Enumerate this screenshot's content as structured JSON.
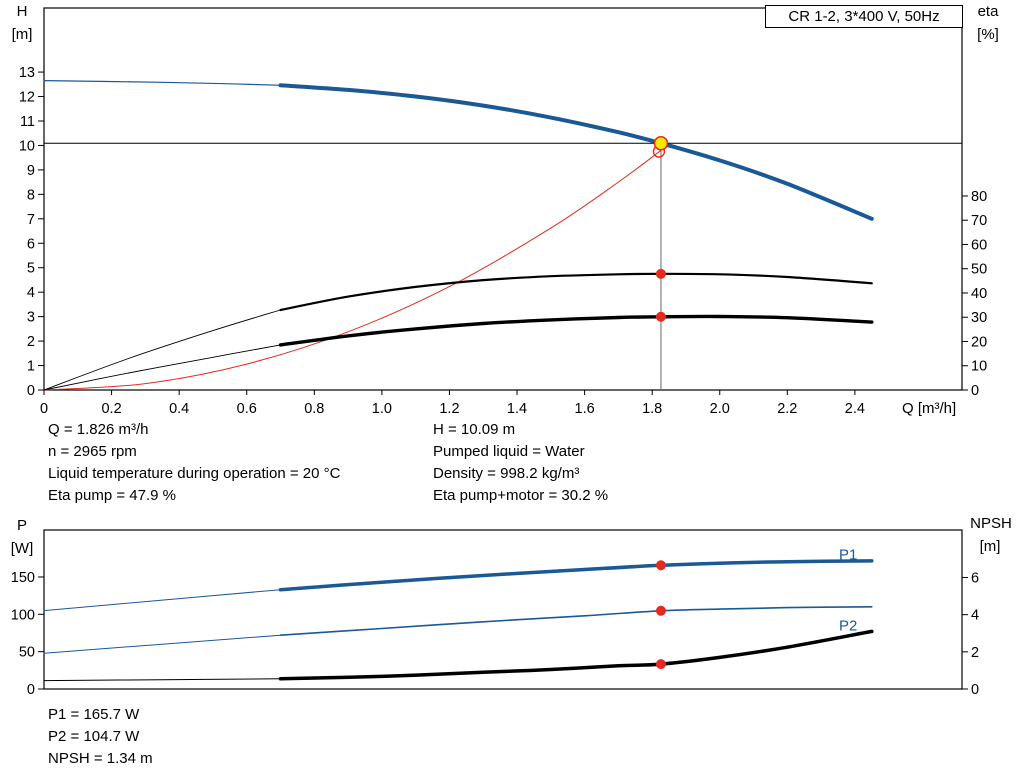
{
  "title_box": {
    "border_color": "#000000"
  },
  "colors": {
    "pump_blue": "#1a5896",
    "red": "#e42b1e",
    "duty_yellow": "#ffe800",
    "black": "#000000",
    "crosshair_gray": "#666666"
  },
  "chart_data": [
    {
      "type": "line",
      "title": "CR 1-2, 3*400 V, 50Hz",
      "xlabel": "Q [m³/h]",
      "ylabel_left": "H",
      "ylabel_left_unit": "[m]",
      "ylabel_right": "eta",
      "ylabel_right_unit": "[%]",
      "show_x_tick_labels": true,
      "x_ticks": [
        [
          0,
          "0"
        ],
        [
          0.2,
          "0.2"
        ],
        [
          0.4,
          "0.4"
        ],
        [
          0.6,
          "0.6"
        ],
        [
          0.8,
          "0.8"
        ],
        [
          1.0,
          "1.0"
        ],
        [
          1.2,
          "1.2"
        ],
        [
          1.4,
          "1.4"
        ],
        [
          1.6,
          "1.6"
        ],
        [
          1.8,
          "1.8"
        ],
        [
          2.0,
          "2.0"
        ],
        [
          2.2,
          "2.2"
        ],
        [
          2.4,
          "2.4"
        ]
      ],
      "y_ticks_left": [
        [
          0,
          "0"
        ],
        [
          1,
          "1"
        ],
        [
          2,
          "2"
        ],
        [
          3,
          "3"
        ],
        [
          4,
          "4"
        ],
        [
          5,
          "5"
        ],
        [
          6,
          "6"
        ],
        [
          7,
          "7"
        ],
        [
          8,
          "8"
        ],
        [
          9,
          "9"
        ],
        [
          10,
          "10"
        ],
        [
          11,
          "11"
        ],
        [
          12,
          "12"
        ],
        [
          13,
          "13"
        ]
      ],
      "y_ticks_right": [
        [
          0,
          "0"
        ],
        [
          10,
          "10"
        ],
        [
          20,
          "20"
        ],
        [
          30,
          "30"
        ],
        [
          40,
          "40"
        ],
        [
          50,
          "50"
        ],
        [
          60,
          "60"
        ],
        [
          70,
          "70"
        ],
        [
          80,
          "80"
        ]
      ],
      "xlim": [
        0,
        2.717
      ],
      "ylim_left": [
        0,
        15.62
      ],
      "ylim_right": [
        0,
        157.5
      ],
      "grid": false,
      "series": [
        {
          "name": "pump-curve-thin",
          "axis": "left",
          "color": "#1a5896",
          "width": 1.2,
          "points": [
            [
              0,
              12.65
            ],
            [
              0.35,
              12.58
            ],
            [
              0.55,
              12.52
            ],
            [
              0.7,
              12.46
            ]
          ]
        },
        {
          "name": "pump-curve",
          "axis": "left",
          "color": "#1a5896",
          "width": 4,
          "points": [
            [
              0.7,
              12.46
            ],
            [
              0.9,
              12.27
            ],
            [
              1.1,
              12.0
            ],
            [
              1.3,
              11.63
            ],
            [
              1.5,
              11.14
            ],
            [
              1.7,
              10.54
            ],
            [
              1.826,
              10.09
            ],
            [
              2.0,
              9.39
            ],
            [
              2.2,
              8.43
            ],
            [
              2.45,
              7.0
            ]
          ]
        },
        {
          "name": "system-curve",
          "axis": "left",
          "color": "#e42b1e",
          "width": 1,
          "points": [
            [
              0,
              0
            ],
            [
              0.3,
              0.26
            ],
            [
              0.6,
              1.06
            ],
            [
              0.9,
              2.38
            ],
            [
              1.2,
              4.23
            ],
            [
              1.5,
              6.62
            ],
            [
              1.7,
              8.5
            ],
            [
              1.826,
              9.8
            ]
          ]
        },
        {
          "name": "eta-pump-curve-thin",
          "axis": "right",
          "color": "#000000",
          "width": 0.9,
          "points": [
            [
              0,
              0
            ],
            [
              0.25,
              13
            ],
            [
              0.5,
              24.5
            ],
            [
              0.7,
              33
            ]
          ]
        },
        {
          "name": "eta-pump-curve",
          "axis": "right",
          "color": "#000000",
          "width": 2.2,
          "points": [
            [
              0.7,
              33
            ],
            [
              0.9,
              38.5
            ],
            [
              1.1,
              42.5
            ],
            [
              1.3,
              45.3
            ],
            [
              1.5,
              46.9
            ],
            [
              1.7,
              47.7
            ],
            [
              1.826,
              47.9
            ],
            [
              2.0,
              47.7
            ],
            [
              2.2,
              46.6
            ],
            [
              2.45,
              44.0
            ]
          ]
        },
        {
          "name": "eta-pump-motor-curve-thin",
          "axis": "right",
          "color": "#000000",
          "width": 0.9,
          "points": [
            [
              0,
              0
            ],
            [
              0.25,
              7
            ],
            [
              0.5,
              13.5
            ],
            [
              0.7,
              18.6
            ]
          ]
        },
        {
          "name": "eta-pump-motor-curve",
          "axis": "right",
          "color": "#000000",
          "width": 3.4,
          "points": [
            [
              0.7,
              18.6
            ],
            [
              0.9,
              22.3
            ],
            [
              1.1,
              25.2
            ],
            [
              1.3,
              27.4
            ],
            [
              1.5,
              28.9
            ],
            [
              1.7,
              29.9
            ],
            [
              1.826,
              30.2
            ],
            [
              2.0,
              30.3
            ],
            [
              2.2,
              29.8
            ],
            [
              2.45,
              28.0
            ]
          ]
        }
      ],
      "crosshair": {
        "q": 1.826,
        "value": 10.09,
        "axis": "left"
      },
      "markers": [
        {
          "type": "open",
          "name": "requested-duty-marker",
          "axis": "left",
          "q": 1.82,
          "v": 9.75,
          "r": 5.5,
          "color": "#e42b1e"
        },
        {
          "type": "duty",
          "name": "duty-point-marker",
          "axis": "left",
          "q": 1.826,
          "v": 10.09,
          "r": 6.5,
          "fill": "#ffe800",
          "stroke": "#e42b1e"
        },
        {
          "type": "dot",
          "name": "eta-pump-duty-dot",
          "axis": "right",
          "q": 1.826,
          "v": 47.9,
          "r": 4.5,
          "color": "#e42b1e"
        },
        {
          "type": "dot",
          "name": "eta-pump-motor-duty-dot",
          "axis": "right",
          "q": 1.826,
          "v": 30.2,
          "r": 4.5,
          "color": "#e42b1e"
        }
      ]
    },
    {
      "type": "line",
      "title": "",
      "xlabel": "",
      "ylabel_left": "P",
      "ylabel_left_unit": "[W]",
      "ylabel_right": "NPSH",
      "ylabel_right_unit": "[m]",
      "show_x_tick_labels": false,
      "x_ticks": [],
      "y_ticks_left": [
        [
          0,
          "0"
        ],
        [
          50,
          "50"
        ],
        [
          100,
          "100"
        ],
        [
          150,
          "150"
        ]
      ],
      "y_ticks_right": [
        [
          0,
          "0"
        ],
        [
          2,
          "2"
        ],
        [
          4,
          "4"
        ],
        [
          6,
          "6"
        ]
      ],
      "xlim": [
        0,
        2.717
      ],
      "ylim_left": [
        0,
        212.9
      ],
      "ylim_right": [
        0,
        8.556
      ],
      "grid": false,
      "series": [
        {
          "name": "p1-curve-thin",
          "axis": "left",
          "color": "#1a5896",
          "width": 1,
          "points": [
            [
              0,
              105
            ],
            [
              0.35,
              119
            ],
            [
              0.7,
              133
            ]
          ]
        },
        {
          "name": "p1-curve",
          "axis": "left",
          "color": "#1a5896",
          "width": 3.5,
          "points": [
            [
              0.7,
              133
            ],
            [
              1.0,
              143
            ],
            [
              1.3,
              152
            ],
            [
              1.6,
              160
            ],
            [
              1.826,
              165.7
            ],
            [
              2.0,
              168.5
            ],
            [
              2.2,
              170.5
            ],
            [
              2.45,
              171.5
            ]
          ]
        },
        {
          "name": "p2-curve-thin",
          "axis": "left",
          "color": "#1a5896",
          "width": 1,
          "points": [
            [
              0,
              48
            ],
            [
              0.35,
              60
            ],
            [
              0.7,
              72
            ]
          ]
        },
        {
          "name": "p2-curve",
          "axis": "left",
          "color": "#1a5896",
          "width": 1.6,
          "points": [
            [
              0.7,
              72
            ],
            [
              1.0,
              81
            ],
            [
              1.3,
              90
            ],
            [
              1.6,
              98
            ],
            [
              1.826,
              104.7
            ],
            [
              2.0,
              107
            ],
            [
              2.2,
              109
            ],
            [
              2.45,
              110
            ]
          ]
        },
        {
          "name": "npsh-curve-thin",
          "axis": "right",
          "color": "#000000",
          "width": 1,
          "points": [
            [
              0,
              0.45
            ],
            [
              0.35,
              0.5
            ],
            [
              0.7,
              0.55
            ]
          ]
        },
        {
          "name": "npsh-curve",
          "axis": "right",
          "color": "#000000",
          "width": 3.5,
          "points": [
            [
              0.7,
              0.55
            ],
            [
              1.0,
              0.68
            ],
            [
              1.3,
              0.9
            ],
            [
              1.5,
              1.05
            ],
            [
              1.7,
              1.25
            ],
            [
              1.826,
              1.34
            ],
            [
              2.0,
              1.7
            ],
            [
              2.2,
              2.25
            ],
            [
              2.45,
              3.1
            ]
          ]
        }
      ],
      "markers": [
        {
          "type": "dot",
          "name": "p1-duty-dot",
          "axis": "left",
          "q": 1.826,
          "v": 165.7,
          "r": 4.5,
          "color": "#e42b1e"
        },
        {
          "type": "dot",
          "name": "p2-duty-dot",
          "axis": "left",
          "q": 1.826,
          "v": 104.7,
          "r": 4.5,
          "color": "#e42b1e"
        },
        {
          "type": "dot",
          "name": "npsh-duty-dot",
          "axis": "right",
          "q": 1.826,
          "v": 1.34,
          "r": 4.5,
          "color": "#e42b1e"
        }
      ],
      "curve_labels": [
        {
          "text": "P1",
          "q": 2.38,
          "axis": "left",
          "v": 180,
          "color": "#1a5896"
        },
        {
          "text": "P2",
          "q": 2.38,
          "axis": "left",
          "v": 85,
          "color": "#1a5896"
        }
      ]
    }
  ],
  "readouts": {
    "left_column": [
      "Q = 1.826 m³/h",
      "n = 2965 rpm",
      "Liquid temperature during operation = 20 °C",
      "Eta pump = 47.9 %"
    ],
    "right_column": [
      "H = 10.09 m",
      "Pumped liquid = Water",
      "Density = 998.2 kg/m³",
      "Eta pump+motor = 30.2 %"
    ],
    "power_column": [
      "P1 = 165.7 W",
      "P2 = 104.7 W",
      "NPSH = 1.34 m"
    ]
  }
}
